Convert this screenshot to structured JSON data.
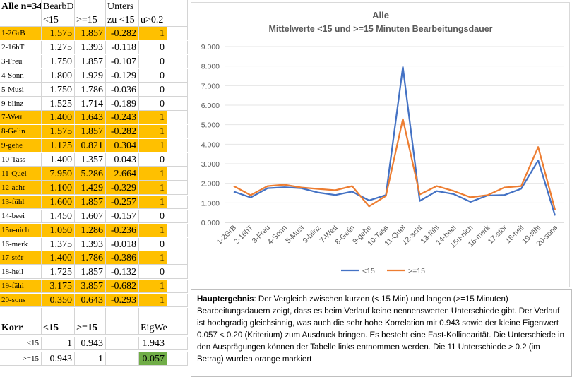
{
  "sheet": {
    "header1": [
      "Alle n=34",
      "BearbDauern",
      "",
      "Unters",
      "",
      ""
    ],
    "header2": [
      "",
      "<15",
      ">=15",
      "zu <15",
      "u>0.2",
      ""
    ],
    "rows": [
      {
        "label": "1-2GrB",
        "lt15": "1.575",
        "ge15": "1.857",
        "diff": "-0.282",
        "flag": "1",
        "hl": true
      },
      {
        "label": "2-16hT",
        "lt15": "1.275",
        "ge15": "1.393",
        "diff": "-0.118",
        "flag": "0",
        "hl": false
      },
      {
        "label": "3-Freu",
        "lt15": "1.750",
        "ge15": "1.857",
        "diff": "-0.107",
        "flag": "0",
        "hl": false
      },
      {
        "label": "4-Sonn",
        "lt15": "1.800",
        "ge15": "1.929",
        "diff": "-0.129",
        "flag": "0",
        "hl": false
      },
      {
        "label": "5-Musi",
        "lt15": "1.750",
        "ge15": "1.786",
        "diff": "-0.036",
        "flag": "0",
        "hl": false
      },
      {
        "label": "9-blinz",
        "lt15": "1.525",
        "ge15": "1.714",
        "diff": "-0.189",
        "flag": "0",
        "hl": false
      },
      {
        "label": "7-Wett",
        "lt15": "1.400",
        "ge15": "1.643",
        "diff": "-0.243",
        "flag": "1",
        "hl": true
      },
      {
        "label": "8-Gelin",
        "lt15": "1.575",
        "ge15": "1.857",
        "diff": "-0.282",
        "flag": "1",
        "hl": true
      },
      {
        "label": "9-gehe",
        "lt15": "1.125",
        "ge15": "0.821",
        "diff": "0.304",
        "flag": "1",
        "hl": true
      },
      {
        "label": "10-Tass",
        "lt15": "1.400",
        "ge15": "1.357",
        "diff": "0.043",
        "flag": "0",
        "hl": false
      },
      {
        "label": "11-Quel",
        "lt15": "7.950",
        "ge15": "5.286",
        "diff": "2.664",
        "flag": "1",
        "hl": true
      },
      {
        "label": "12-acht",
        "lt15": "1.100",
        "ge15": "1.429",
        "diff": "-0.329",
        "flag": "1",
        "hl": true
      },
      {
        "label": "13-fühl",
        "lt15": "1.600",
        "ge15": "1.857",
        "diff": "-0.257",
        "flag": "1",
        "hl": true
      },
      {
        "label": "14-beei",
        "lt15": "1.450",
        "ge15": "1.607",
        "diff": "-0.157",
        "flag": "0",
        "hl": false
      },
      {
        "label": "15u-nich",
        "lt15": "1.050",
        "ge15": "1.286",
        "diff": "-0.236",
        "flag": "1",
        "hl": true
      },
      {
        "label": "16-merk",
        "lt15": "1.375",
        "ge15": "1.393",
        "diff": "-0.018",
        "flag": "0",
        "hl": false
      },
      {
        "label": "17-stör",
        "lt15": "1.400",
        "ge15": "1.786",
        "diff": "-0.386",
        "flag": "1",
        "hl": true
      },
      {
        "label": "18-heil",
        "lt15": "1.725",
        "ge15": "1.857",
        "diff": "-0.132",
        "flag": "0",
        "hl": false
      },
      {
        "label": "19-fähi",
        "lt15": "3.175",
        "ge15": "3.857",
        "diff": "-0.682",
        "flag": "1",
        "hl": true
      },
      {
        "label": "20-sons",
        "lt15": "0.350",
        "ge15": "0.643",
        "diff": "-0.293",
        "flag": "1",
        "hl": true
      }
    ],
    "korr": {
      "title": "Korr",
      "col1": "<15",
      "col2": ">=15",
      "eig_title": "EigWert",
      "r1_label": "<15",
      "r1_v1": "1",
      "r1_v2": "0.943",
      "eig1": "1.943",
      "r2_label": ">=15",
      "r2_v1": "0.943",
      "r2_v2": "1",
      "eig2": "0.057"
    }
  },
  "colors": {
    "highlight": "#ffc000",
    "lt15": "#4472c4",
    "ge15": "#ed7d31",
    "eig": "#70ad47"
  },
  "chart_data": {
    "type": "line",
    "title": "Alle",
    "subtitle": "Mittelwerte <15 und >=15 Minuten Bearbeitungsdauer",
    "categories": [
      "1-2GrB",
      "2-16hT",
      "3-Freu",
      "4-Sonn",
      "5-Musi",
      "9-blinz",
      "7-Wett",
      "8-Gelin",
      "9-gehe",
      "10-Tass",
      "11-Quel",
      "12-acht",
      "13-fühl",
      "14-beei",
      "15u-nich",
      "16-merk",
      "17-stör",
      "18-heil",
      "19-fähi",
      "20-sons"
    ],
    "series": [
      {
        "name": "<15",
        "values": [
          1.575,
          1.275,
          1.75,
          1.8,
          1.75,
          1.525,
          1.4,
          1.575,
          1.125,
          1.4,
          7.95,
          1.1,
          1.6,
          1.45,
          1.05,
          1.375,
          1.4,
          1.725,
          3.175,
          0.35
        ]
      },
      {
        "name": ">=15",
        "values": [
          1.857,
          1.393,
          1.857,
          1.929,
          1.786,
          1.714,
          1.643,
          1.857,
          0.821,
          1.357,
          5.286,
          1.429,
          1.857,
          1.607,
          1.286,
          1.393,
          1.786,
          1.857,
          3.857,
          0.643
        ]
      }
    ],
    "ylim": [
      0,
      9
    ],
    "yticks": [
      "0.000",
      "1.000",
      "2.000",
      "3.000",
      "4.000",
      "5.000",
      "6.000",
      "7.000",
      "8.000",
      "9.000"
    ],
    "legend": "bottom"
  },
  "textbox": {
    "bold": "Hauptergebnis",
    "text": ": Der Vergleich zwischen kurzen (< 15 Min) und langen (>=15 Minuten) Bearbeitungsdauern zeigt, dass es beim Verlauf keine nennenswerten Unterschiede gibt. Der Verlauf ist hochgradig gleichsinnig, was auch die sehr hohe Korrelation mit 0.943 sowie der kleine Eigenwert 0.057 <  0.20 (Kriterium) zum Ausdruck bringen. Es besteht eine Fast-Kollinearität. Die Unterschiede in den Ausprägungen können der Tabelle links entnommen werden. Die 11 Unterschiede > 0.2 (im Betrag) wurden orange markiert"
  }
}
